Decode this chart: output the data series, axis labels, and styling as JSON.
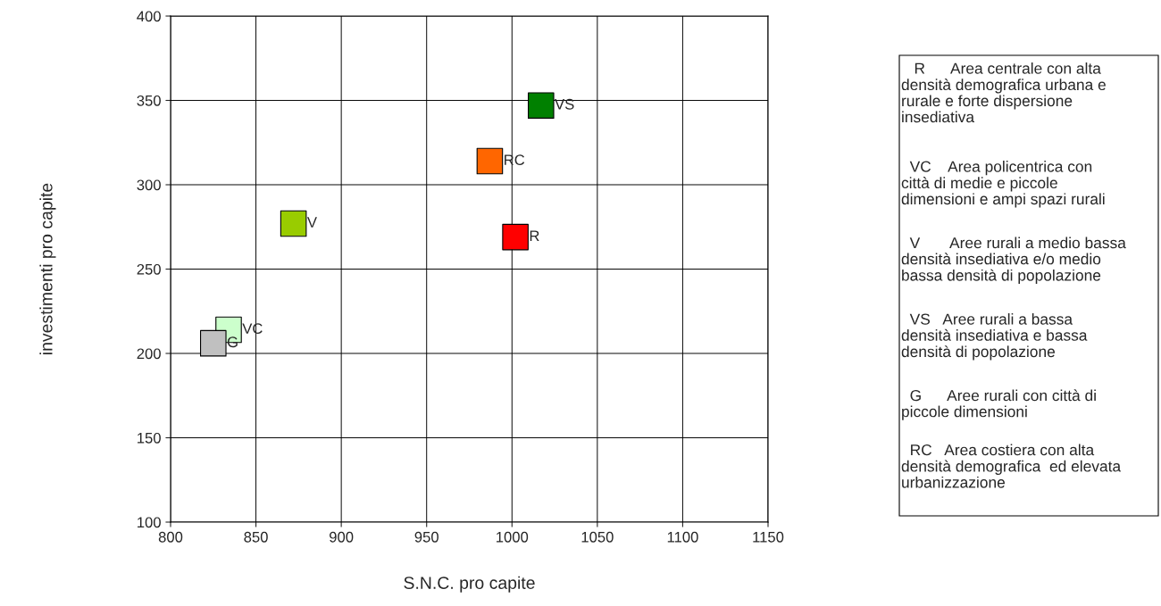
{
  "chart_data": {
    "type": "scatter",
    "xlabel": "S.N.C. pro capite",
    "ylabel": "investimenti pro capite",
    "xlim": [
      800,
      1150
    ],
    "xticks": [
      800,
      850,
      900,
      950,
      1000,
      1050,
      1100,
      1150
    ],
    "ylim": [
      100,
      400
    ],
    "yticks": [
      100,
      150,
      200,
      250,
      300,
      350,
      400
    ],
    "grid": true,
    "marker": "square",
    "legend": false,
    "series": [
      {
        "name": "VS",
        "color": "#008000",
        "x": [
          1017
        ],
        "values": [
          347
        ]
      },
      {
        "name": "RC",
        "color": "#ff6600",
        "x": [
          987
        ],
        "values": [
          314
        ]
      },
      {
        "name": "V",
        "color": "#99cc00",
        "x": [
          872
        ],
        "values": [
          277
        ]
      },
      {
        "name": "R",
        "color": "#ff0000",
        "x": [
          1002
        ],
        "values": [
          269
        ]
      },
      {
        "name": "VC",
        "color": "#ccffcc",
        "x": [
          834
        ],
        "values": [
          214
        ]
      },
      {
        "name": "G",
        "color": "#c0c0c0",
        "x": [
          825
        ],
        "values": [
          206
        ]
      }
    ],
    "annotations": [
      "   R      Area centrale con alta\ndensità demografica urbana e\nrurale e forte dispersione\ninsediativa",
      "  VC    Area policentrica con\ncittà di medie e piccole\ndimensioni e ampi spazi rurali",
      "  V       Aree rurali a medio bassa\ndensità insediativa e/o medio\nbassa densità di popolazione",
      "  VS   Aree rurali a bassa\ndensità insediativa e bassa\ndensità di popolazione",
      "  G      Aree rurali con città di\npiccole dimensioni",
      "  RC   Area costiera con alta\ndensità demografica  ed elevata\nurbanizzazione"
    ]
  }
}
